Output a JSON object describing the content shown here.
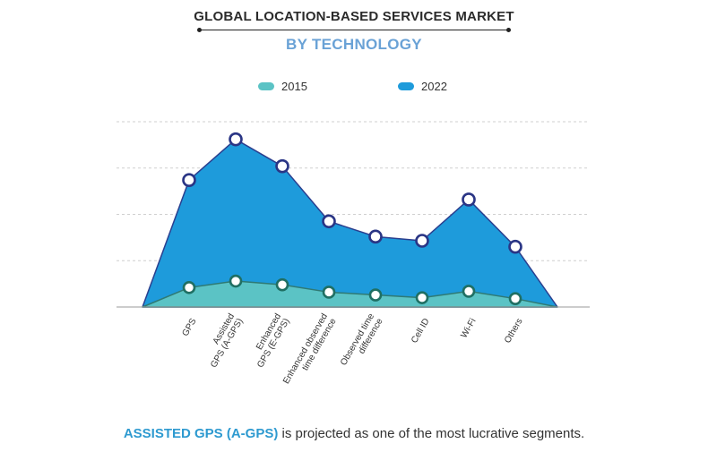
{
  "chart_data": {
    "type": "area",
    "title": "GLOBAL LOCATION-BASED SERVICES MARKET",
    "subtitle": "BY TECHNOLOGY",
    "categories": [
      "GPS",
      "Assisted GPS (A-GPS)",
      "Enhanced GPS (E-GPS)",
      "Enhanced observed time difference",
      "Observed time difference",
      "Cell ID",
      "Wi-Fi",
      "Others"
    ],
    "tick_lines": [
      [
        "GPS"
      ],
      [
        "Assisted",
        "GPS (A-GPS)"
      ],
      [
        "Enhanced",
        "GPS (E-GPS)"
      ],
      [
        "Enhanced observed",
        "time difference"
      ],
      [
        "Observed time",
        "difference"
      ],
      [
        "Cell ID"
      ],
      [
        "Wi-Fi"
      ],
      [
        "Others"
      ]
    ],
    "series": [
      {
        "name": "2022",
        "color": "#1e9bdb",
        "values": [
          2.74,
          3.62,
          3.04,
          1.85,
          1.52,
          1.43,
          2.32,
          1.3
        ]
      },
      {
        "name": "2015",
        "color": "#5bc3c5",
        "values": [
          0.42,
          0.56,
          0.48,
          0.32,
          0.26,
          0.2,
          0.34,
          0.18
        ]
      }
    ],
    "ylim": [
      0,
      4
    ],
    "grid": true,
    "xlabel": "",
    "ylabel": "",
    "legend": "top-center"
  },
  "legend": [
    {
      "label": "2015",
      "color": "#5bc3c5"
    },
    {
      "label": "2022",
      "color": "#1e9bdb"
    }
  ],
  "caption": {
    "highlight": "ASSISTED GPS (A-GPS)",
    "rest": " is projected as one of the most lucrative segments."
  }
}
